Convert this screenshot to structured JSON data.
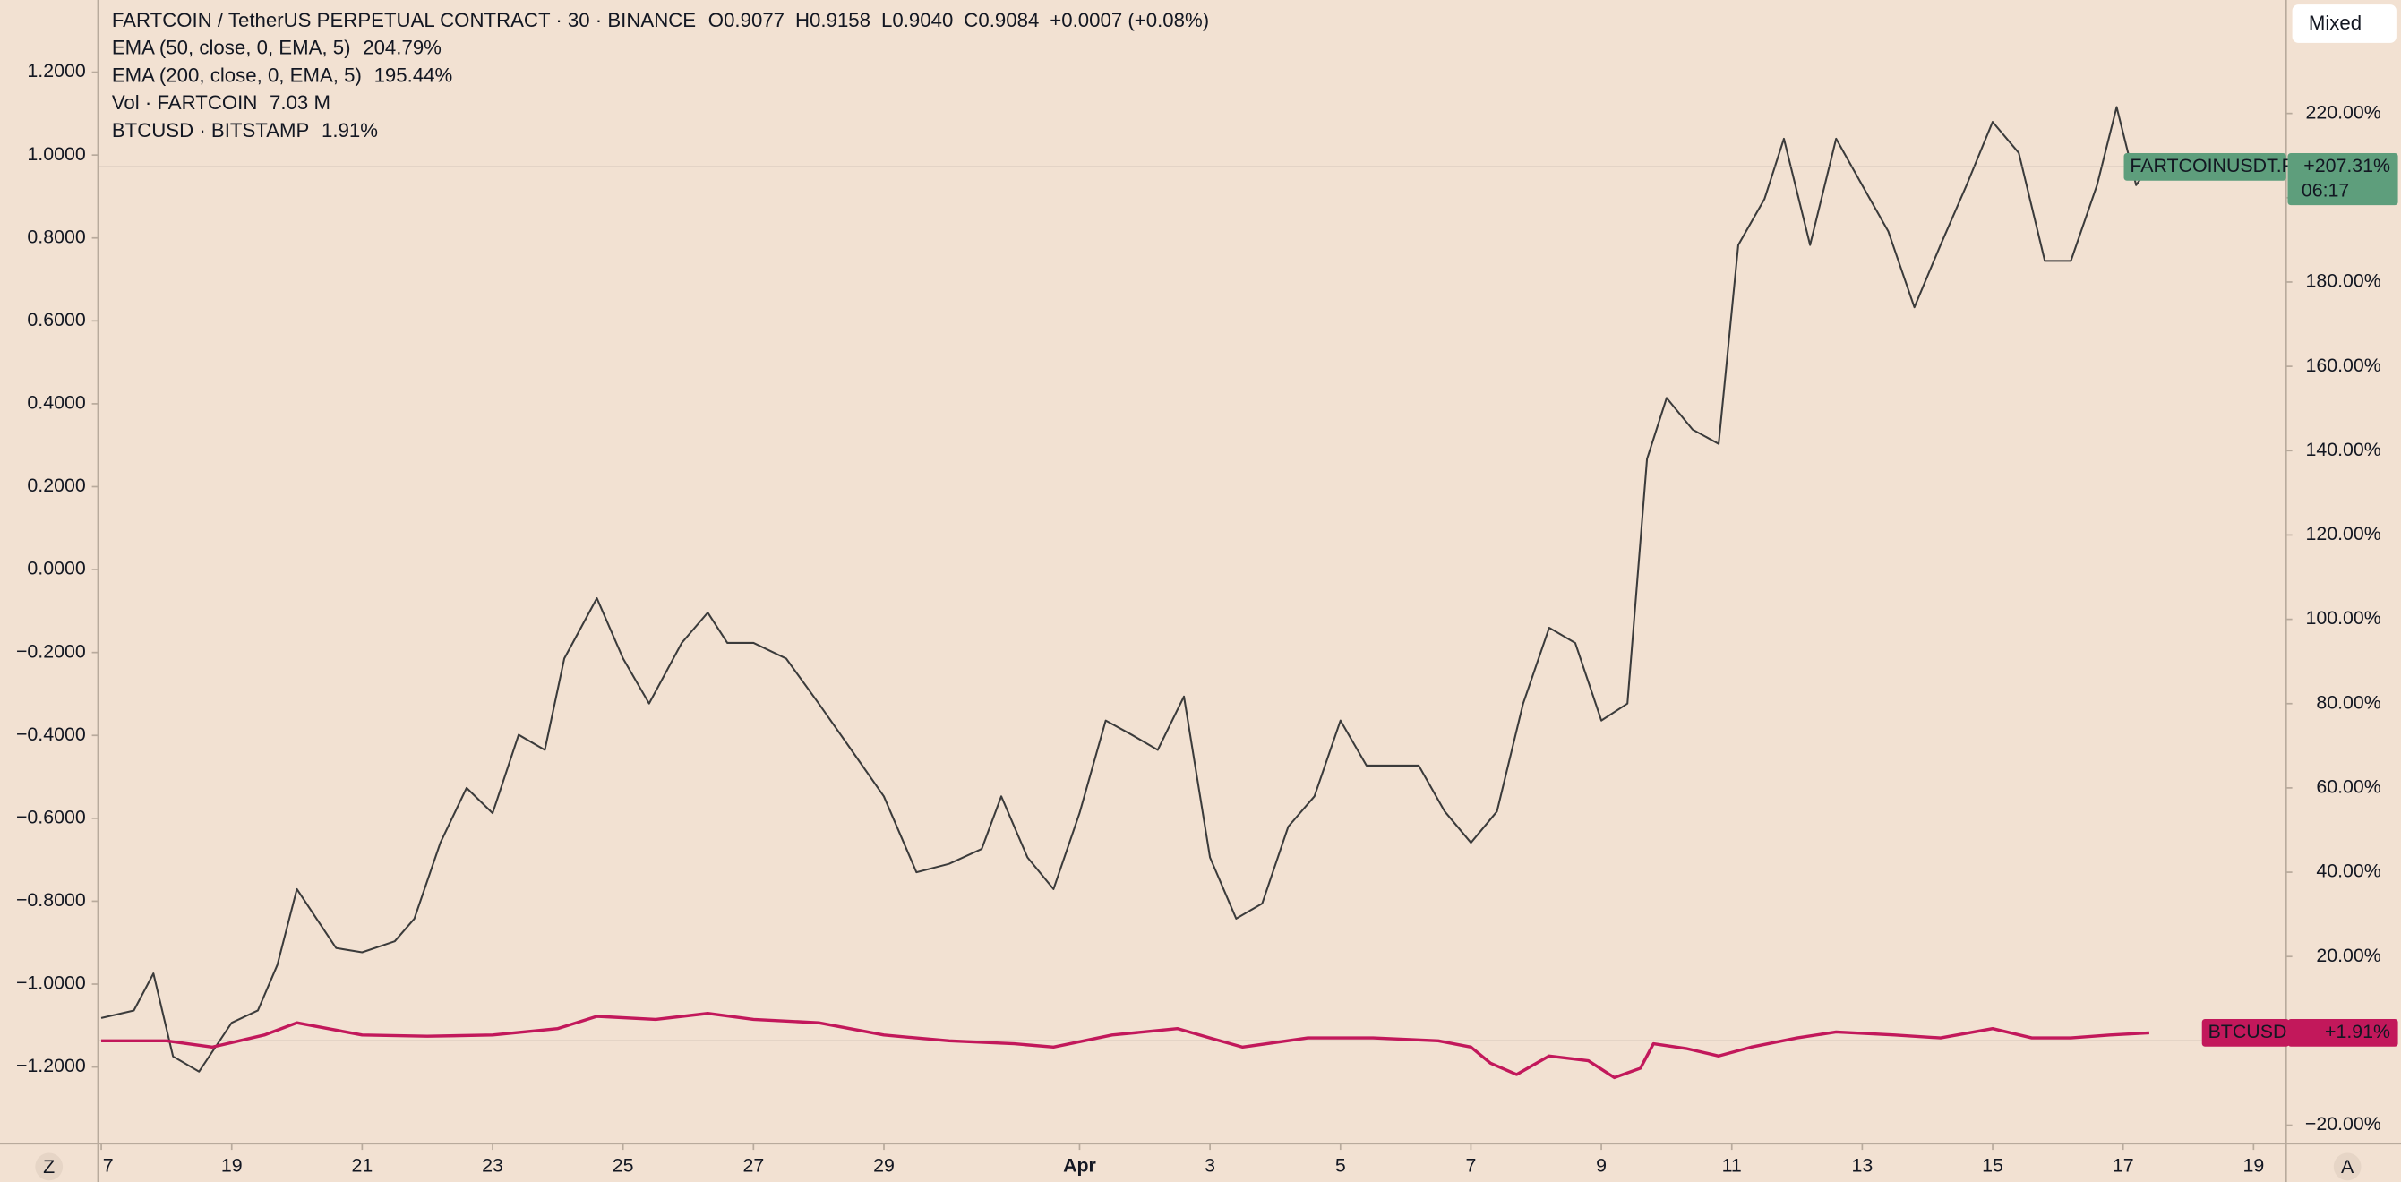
{
  "chart_data": {
    "type": "line",
    "title": "FARTCOIN / TetherUS PERPETUAL CONTRACT · 30 · BINANCE",
    "ohlc": [
      "O0.9077",
      "H0.9158",
      "L0.9040",
      "C0.9084",
      "+0.0007 (+0.08%)"
    ],
    "ohlc_color": "#1b5e20",
    "indicators": [
      {
        "text": "EMA (50, close, 0, EMA, 5)",
        "value": "204.79%",
        "color": "#e53935"
      },
      {
        "text": "EMA (200, close, 0, EMA, 5)",
        "value": "195.44%",
        "color": "#2962ff"
      },
      {
        "text": "Vol · FARTCOIN",
        "value": "7.03 M",
        "color": "#26a69a"
      },
      {
        "text": "BTCUSD · BITSTAMP",
        "value": "1.91%",
        "color": "#c2185b"
      }
    ],
    "scale_button": "Mixed",
    "left_button": "Z",
    "right_button": "A",
    "grid": false,
    "xlim": [
      -0.05,
      33.5
    ],
    "xticks": [
      {
        "value": 0,
        "label": "7"
      },
      {
        "value": 2,
        "label": "19"
      },
      {
        "value": 4,
        "label": "21"
      },
      {
        "value": 6,
        "label": "23"
      },
      {
        "value": 8,
        "label": "25"
      },
      {
        "value": 10,
        "label": "27"
      },
      {
        "value": 12,
        "label": "29"
      },
      {
        "value": 15,
        "label": "Apr"
      },
      {
        "value": 17,
        "label": "3"
      },
      {
        "value": 19,
        "label": "5"
      },
      {
        "value": 21,
        "label": "7"
      },
      {
        "value": 23,
        "label": "9"
      },
      {
        "value": 25,
        "label": "11"
      },
      {
        "value": 27,
        "label": "13"
      },
      {
        "value": 29,
        "label": "15"
      },
      {
        "value": 31,
        "label": "17"
      },
      {
        "value": 33,
        "label": "19"
      }
    ],
    "ylim": [
      -24.4,
      246.9
    ],
    "yticks": [
      {
        "value": 220,
        "label": "220.00%"
      },
      {
        "value": 200,
        "label": "200.00%"
      },
      {
        "value": 180,
        "label": "180.00%"
      },
      {
        "value": 160,
        "label": "160.00%"
      },
      {
        "value": 140,
        "label": "140.00%"
      },
      {
        "value": 120,
        "label": "120.00%"
      },
      {
        "value": 100,
        "label": "100.00%"
      },
      {
        "value": 80,
        "label": "80.00%"
      },
      {
        "value": 60,
        "label": "60.00%"
      },
      {
        "value": 40,
        "label": "40.00%"
      },
      {
        "value": 20,
        "label": "20.00%"
      },
      {
        "value": -20,
        "label": "−20.00%"
      }
    ],
    "y2lim": [
      -1.385,
      1.374
    ],
    "y2ticks": [
      {
        "value": 1.2,
        "label": "1.2000"
      },
      {
        "value": 1.0,
        "label": "1.0000"
      },
      {
        "value": 0.8,
        "label": "0.8000"
      },
      {
        "value": 0.6,
        "label": "0.6000"
      },
      {
        "value": 0.4,
        "label": "0.4000"
      },
      {
        "value": 0.2,
        "label": "0.2000"
      },
      {
        "value": 0.0,
        "label": "0.0000"
      },
      {
        "value": -0.2,
        "label": "−0.2000"
      },
      {
        "value": -0.4,
        "label": "−0.4000"
      },
      {
        "value": -0.6,
        "label": "−0.6000"
      },
      {
        "value": -0.8,
        "label": "−0.8000"
      },
      {
        "value": -1.0,
        "label": "−1.0000"
      },
      {
        "value": -1.2,
        "label": "−1.2000"
      }
    ],
    "series": [
      {
        "name": "FARTCOINUSDT.P",
        "color": "#3b3b3b",
        "tag_color": "#5e9e7c",
        "last_label": "+207.31%",
        "countdown": "06:17",
        "x": [
          0,
          0.5,
          0.8,
          1.1,
          1.5,
          2,
          2.4,
          2.7,
          3,
          3.3,
          3.6,
          4,
          4.5,
          4.8,
          5.2,
          5.6,
          6,
          6.4,
          6.8,
          7.1,
          7.6,
          8,
          8.4,
          8.9,
          9.3,
          9.6,
          10,
          10.5,
          11,
          11.5,
          12,
          12.5,
          13,
          13.5,
          13.8,
          14.2,
          14.6,
          15,
          15.4,
          15.8,
          16.2,
          16.6,
          17,
          17.4,
          17.8,
          18.2,
          18.6,
          19,
          19.4,
          19.8,
          20.2,
          20.6,
          21,
          21.4,
          21.8,
          22.2,
          22.6,
          23,
          23.4,
          23.7,
          24,
          24.4,
          24.8,
          25.1,
          25.5,
          25.8,
          26.2,
          26.6,
          27,
          27.4,
          27.8,
          28.2,
          28.6,
          29,
          29.4,
          29.8,
          30.2,
          30.6,
          30.9,
          31.2,
          31.4
        ],
        "values": [
          5.4,
          7.2,
          16,
          -3.7,
          -7.3,
          4.3,
          7.2,
          18,
          36,
          29,
          22,
          21,
          23.6,
          29,
          47,
          60,
          54,
          72.6,
          69,
          90.7,
          105,
          90.7,
          80,
          94.4,
          101.6,
          94.4,
          94.4,
          90.7,
          80,
          69,
          58,
          40,
          42,
          45.5,
          58,
          43.5,
          36,
          54,
          76,
          72.6,
          69,
          81.7,
          43.5,
          29,
          32.6,
          50.8,
          58,
          76,
          65.3,
          65.3,
          65.3,
          54.4,
          47,
          54.4,
          80,
          98,
          94.4,
          76,
          80,
          138,
          152.5,
          145,
          141.6,
          188.8,
          199.7,
          214,
          188.8,
          214,
          203,
          192,
          174,
          188.8,
          203,
          218,
          210.6,
          185,
          185,
          203,
          221.5,
          203,
          207.31
        ]
      },
      {
        "name": "BTCUSD",
        "color": "#c2185b",
        "tag_color": "#c2185b",
        "last_label": "+1.91%",
        "x": [
          0,
          1,
          1.7,
          2.5,
          3,
          4,
          5,
          6,
          7,
          7.6,
          8.5,
          9.3,
          10,
          11,
          12,
          13,
          14,
          14.6,
          15.5,
          16.5,
          17,
          17.5,
          18.5,
          19.5,
          20.5,
          21,
          21.3,
          21.7,
          22.2,
          22.8,
          23.2,
          23.6,
          23.8,
          24.3,
          24.8,
          25.3,
          26,
          26.6,
          27.5,
          28.2,
          29,
          29.6,
          30.2,
          30.8,
          31.4
        ],
        "values": [
          0,
          0,
          -1.5,
          1.4,
          4.3,
          1.4,
          1.1,
          1.4,
          2.9,
          5.8,
          5.1,
          6.5,
          5.1,
          4.3,
          1.4,
          0,
          -0.7,
          -1.5,
          1.4,
          2.9,
          0.7,
          -1.5,
          0.7,
          0.7,
          0,
          -1.5,
          -5.3,
          -8,
          -3.6,
          -4.7,
          -8.7,
          -6.5,
          -0.7,
          -1.8,
          -3.6,
          -1.5,
          0.7,
          2.1,
          1.4,
          0.7,
          2.9,
          0.7,
          0.7,
          1.4,
          1.91
        ]
      }
    ]
  }
}
